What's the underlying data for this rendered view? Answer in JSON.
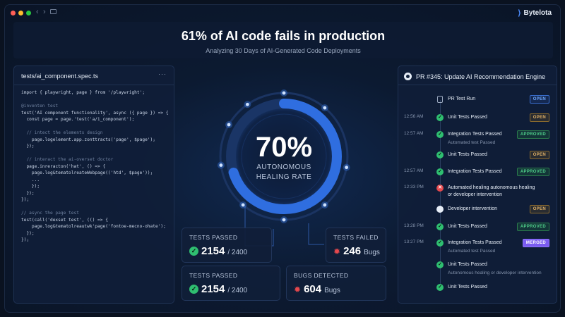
{
  "brand": {
    "name": "Bytelota",
    "icon": "bytelota-logo-icon"
  },
  "header": {
    "title": "61% of AI code fails in production",
    "subtitle": "Analyzing 30 Days of AI-Generated Code Deployments"
  },
  "code_panel": {
    "filename": "tests/ai_component.spec.ts",
    "menu": "···",
    "lines": [
      "import { playwright, page } from '/playwright';",
      "",
      "@inventen test",
      "test('AI component functionality', async ({ page }) => {",
      "  const page = page.'test('a/i_component');",
      "",
      "  // intect the elements design",
      "    page.logelement.app.zonttracts('page', $page');",
      "  });",
      "",
      "  // interact the ai-overset doctor",
      "  page.inreracton('hat', () => {",
      "    page.log&tematolreateWebpage(('htd', $page'));",
      "    ...",
      "    });",
      "  });",
      "});",
      "",
      "// async the page test",
      "test(call('dexset test', (() => {",
      "    page.log&tematolreautwk'page('fontoe-mecno-ohate');",
      "  });",
      "});"
    ]
  },
  "ring": {
    "percent_text": "70%",
    "label_line1": "AUTONOMOUS",
    "label_line2": "HEALING RATE",
    "fraction": 0.7
  },
  "stats": {
    "tests_passed_1": {
      "label": "TESTS PASSED",
      "value": "2154",
      "suffix": "/ 2400"
    },
    "tests_failed": {
      "label": "TESTS FAILED",
      "value": "246",
      "suffix": "Bugs"
    },
    "tests_passed_2": {
      "label": "TESTS PASSED",
      "value": "2154",
      "suffix": "/ 2400"
    },
    "bugs_detected": {
      "label": "BUGS DETECTED",
      "value": "604",
      "suffix": "Bugs"
    }
  },
  "pr_panel": {
    "title": "PR #345: Update AI Recommendation Engine",
    "events": [
      {
        "time": "",
        "icon": "pull-request-icon",
        "text": "PR Test Run",
        "badge": "OPEN",
        "badge_style": "open-blue"
      },
      {
        "time": "12:56 AM",
        "icon": "check-icon",
        "text": "Unit Tests Passed",
        "badge": "OPEN",
        "badge_style": "open-amber"
      },
      {
        "time": "12:57 AM",
        "icon": "check-icon",
        "text": "Integration Tests Passed",
        "badge": "APPROVED",
        "badge_style": "approved",
        "sub": "Automated test Passed"
      },
      {
        "time": "",
        "icon": "check-icon",
        "text": "Unit Tests Passed",
        "badge": "OPEN",
        "badge_style": "open-amber"
      },
      {
        "time": "12:57 AM",
        "icon": "check-icon",
        "text": "Integration Tests Passed",
        "badge": "APPROVED",
        "badge_style": "approved"
      },
      {
        "time": "12:33 PM",
        "icon": "fail-icon",
        "text": "Automated healing autonomous healing",
        "text2": "or developer intervention",
        "badge": "",
        "badge_style": ""
      },
      {
        "time": "",
        "icon": "github-icon",
        "text": "Developer intervention",
        "badge": "OPEN",
        "badge_style": "open-amber"
      },
      {
        "time": "13:28 PM",
        "icon": "check-icon",
        "text": "Unit Tests Passed",
        "badge": "APPROVED",
        "badge_style": "approved"
      },
      {
        "time": "13:27 PM",
        "icon": "check-icon",
        "text": "Integration Tests Passed",
        "badge": "MERGED",
        "badge_style": "merged",
        "sub": "Automated test Passed"
      },
      {
        "time": "",
        "icon": "check-icon",
        "text": "Unit Tests Passed",
        "badge": "",
        "badge_style": "",
        "sub": "Autonomous healing or developer intervention"
      },
      {
        "time": "",
        "icon": "check-icon",
        "text": "Unit Tests Passed",
        "badge": "",
        "badge_style": ""
      }
    ]
  },
  "colors": {
    "accent_blue": "#2f6ee0",
    "success": "#2fbf71",
    "danger": "#e5484d",
    "merged": "#7b5cf0"
  }
}
